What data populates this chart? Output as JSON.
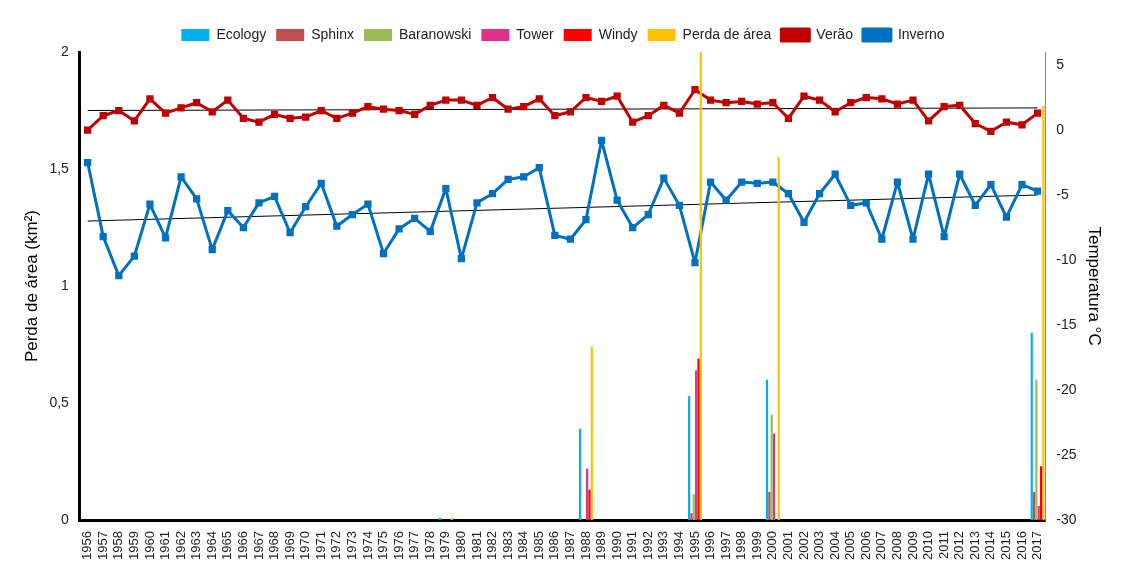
{
  "chart_data": {
    "type": "bar",
    "ylabel": "Perda de área (km²)",
    "y2label": "Temperatura °C",
    "categories": [
      "1956",
      "1957",
      "1958",
      "1959",
      "1960",
      "1961",
      "1962",
      "1963",
      "1964",
      "1965",
      "1966",
      "1967",
      "1968",
      "1969",
      "1970",
      "1971",
      "1972",
      "1973",
      "1974",
      "1975",
      "1976",
      "1977",
      "1978",
      "1979",
      "1980",
      "1981",
      "1982",
      "1983",
      "1984",
      "1985",
      "1986",
      "1987",
      "1988",
      "1989",
      "1990",
      "1991",
      "1992",
      "1993",
      "1994",
      "1995",
      "1996",
      "1997",
      "1998",
      "1999",
      "2000",
      "2001",
      "2002",
      "2003",
      "2004",
      "2005",
      "2006",
      "2007",
      "2008",
      "2009",
      "2010",
      "2011",
      "2012",
      "2013",
      "2014",
      "2015",
      "2016",
      "2017"
    ],
    "series": [
      {
        "name": "Ecology",
        "color": "#00b0f0",
        "values": [
          null,
          null,
          null,
          null,
          null,
          null,
          null,
          null,
          null,
          null,
          null,
          null,
          null,
          null,
          null,
          null,
          null,
          null,
          null,
          null,
          null,
          null,
          null,
          0.01,
          null,
          null,
          null,
          null,
          null,
          null,
          null,
          null,
          0.39,
          null,
          null,
          null,
          null,
          null,
          null,
          0.53,
          null,
          null,
          null,
          null,
          0.6,
          null,
          null,
          null,
          null,
          null,
          null,
          null,
          null,
          null,
          null,
          null,
          null,
          null,
          null,
          null,
          null,
          0.8
        ]
      },
      {
        "name": "Sphinx",
        "color": "#c0504d",
        "values": [
          null,
          null,
          null,
          null,
          null,
          null,
          null,
          null,
          null,
          null,
          null,
          null,
          null,
          null,
          null,
          null,
          null,
          null,
          null,
          null,
          null,
          null,
          null,
          null,
          null,
          null,
          null,
          null,
          null,
          null,
          null,
          null,
          null,
          null,
          null,
          null,
          null,
          null,
          null,
          0.03,
          null,
          null,
          null,
          null,
          0.12,
          null,
          null,
          null,
          null,
          null,
          null,
          null,
          null,
          null,
          null,
          null,
          null,
          null,
          null,
          null,
          null,
          0.12
        ]
      },
      {
        "name": "Baranowski",
        "color": "#9bbb59",
        "values": [
          null,
          null,
          null,
          null,
          null,
          null,
          null,
          null,
          null,
          null,
          null,
          null,
          null,
          null,
          null,
          null,
          null,
          null,
          null,
          null,
          null,
          null,
          null,
          null,
          null,
          null,
          null,
          null,
          null,
          null,
          null,
          null,
          null,
          null,
          null,
          null,
          null,
          null,
          null,
          0.11,
          null,
          null,
          null,
          null,
          0.45,
          null,
          null,
          null,
          null,
          null,
          null,
          null,
          null,
          null,
          null,
          null,
          null,
          null,
          null,
          null,
          null,
          0.6
        ]
      },
      {
        "name": "Tower",
        "color": "#e0308a",
        "values": [
          null,
          null,
          null,
          null,
          null,
          null,
          null,
          null,
          null,
          null,
          null,
          null,
          null,
          null,
          null,
          null,
          null,
          null,
          null,
          null,
          null,
          null,
          null,
          null,
          null,
          null,
          null,
          null,
          null,
          null,
          null,
          null,
          0.22,
          null,
          null,
          null,
          null,
          null,
          null,
          0.64,
          null,
          null,
          null,
          null,
          0.37,
          null,
          null,
          null,
          null,
          null,
          null,
          null,
          null,
          null,
          null,
          null,
          null,
          null,
          null,
          null,
          null,
          0.06
        ]
      },
      {
        "name": "Windy",
        "color": "#ff0000",
        "values": [
          null,
          null,
          null,
          null,
          null,
          null,
          null,
          null,
          null,
          null,
          null,
          null,
          null,
          null,
          null,
          null,
          null,
          null,
          null,
          null,
          null,
          null,
          null,
          null,
          null,
          null,
          null,
          null,
          null,
          null,
          null,
          null,
          0.13,
          null,
          null,
          null,
          null,
          null,
          null,
          0.69,
          null,
          null,
          null,
          null,
          null,
          null,
          null,
          null,
          null,
          null,
          null,
          null,
          null,
          null,
          null,
          null,
          null,
          null,
          null,
          null,
          null,
          0.23
        ]
      },
      {
        "name": "Perda de área",
        "color": "#ffc000",
        "values": [
          null,
          null,
          null,
          null,
          null,
          null,
          null,
          null,
          null,
          null,
          null,
          null,
          null,
          null,
          null,
          null,
          null,
          null,
          null,
          null,
          null,
          null,
          null,
          0.01,
          null,
          null,
          null,
          null,
          null,
          null,
          null,
          null,
          0.74,
          null,
          null,
          null,
          null,
          null,
          null,
          2,
          null,
          null,
          null,
          null,
          1.55,
          null,
          null,
          null,
          null,
          null,
          null,
          null,
          null,
          null,
          null,
          null,
          null,
          null,
          null,
          null,
          null,
          1.77
        ]
      },
      {
        "name": "Verão",
        "type": "line",
        "axis": "y2",
        "color": "#c00000",
        "values": [
          0.0,
          1.1,
          1.5,
          0.7,
          2.4,
          1.3,
          1.7,
          2.1,
          1.4,
          2.3,
          0.9,
          0.6,
          1.2,
          0.9,
          1.0,
          1.5,
          0.9,
          1.3,
          1.8,
          1.6,
          1.5,
          1.2,
          1.9,
          2.3,
          2.3,
          1.9,
          2.5,
          1.6,
          1.8,
          2.4,
          1.1,
          1.4,
          2.5,
          2.2,
          2.6,
          0.6,
          1.1,
          1.9,
          1.3,
          3.1,
          2.3,
          2.1,
          2.2,
          2.0,
          2.1,
          0.9,
          2.6,
          2.3,
          1.4,
          2.1,
          2.5,
          2.4,
          2.0,
          2.3,
          0.7,
          1.8,
          1.9,
          0.5,
          -0.1,
          0.6,
          0.4,
          1.3
        ]
      },
      {
        "name": "Inverno",
        "type": "line",
        "axis": "y2",
        "color": "#0070c0",
        "values": [
          -2.5,
          -8.2,
          -11.2,
          -9.7,
          -5.7,
          -8.3,
          -3.6,
          -5.3,
          -9.2,
          -6.2,
          -7.5,
          -5.6,
          -5.1,
          -7.9,
          -5.9,
          -4.1,
          -7.4,
          -6.5,
          -5.7,
          -9.5,
          -7.6,
          -6.8,
          -7.8,
          -4.5,
          -9.9,
          -5.6,
          -4.9,
          -3.8,
          -3.6,
          -2.9,
          -8.1,
          -8.4,
          -6.9,
          -0.8,
          -5.4,
          -7.5,
          -6.5,
          -3.7,
          -5.8,
          -10.2,
          -4.0,
          -5.4,
          -4.0,
          -4.1,
          -4.0,
          -4.9,
          -7.1,
          -4.9,
          -3.4,
          -5.8,
          -5.6,
          -8.4,
          -4.0,
          -8.4,
          -3.4,
          -8.2,
          -3.4,
          -5.8,
          -4.2,
          -6.7,
          -4.2,
          -4.7
        ]
      },
      {
        "type": "line",
        "axis": "y2",
        "color": "#000000",
        "marker": "none",
        "values": [
          1.5,
          null,
          null,
          null,
          null,
          null,
          null,
          null,
          null,
          null,
          null,
          null,
          null,
          null,
          null,
          null,
          null,
          null,
          null,
          null,
          null,
          null,
          null,
          null,
          null,
          null,
          null,
          null,
          null,
          null,
          null,
          null,
          null,
          null,
          null,
          null,
          null,
          null,
          null,
          null,
          null,
          null,
          null,
          null,
          null,
          null,
          null,
          null,
          null,
          null,
          null,
          null,
          null,
          null,
          null,
          null,
          null,
          null,
          null,
          null,
          null,
          1.7
        ]
      },
      {
        "type": "line",
        "axis": "y2",
        "color": "#000000",
        "marker": "none",
        "values": [
          -7.0,
          null,
          null,
          null,
          null,
          null,
          null,
          null,
          null,
          null,
          null,
          null,
          null,
          null,
          null,
          null,
          null,
          null,
          null,
          null,
          null,
          null,
          null,
          null,
          null,
          null,
          null,
          null,
          null,
          null,
          null,
          null,
          null,
          null,
          null,
          null,
          null,
          null,
          null,
          null,
          null,
          null,
          null,
          null,
          null,
          null,
          null,
          null,
          null,
          null,
          null,
          null,
          null,
          null,
          null,
          null,
          null,
          null,
          null,
          null,
          null,
          -5.0
        ]
      }
    ],
    "ylim": [
      0,
      2
    ],
    "yticks": [
      0,
      {
        "value": 0.5,
        "label": "0,5"
      },
      1,
      {
        "value": 1.5,
        "label": "1,5"
      },
      2
    ],
    "y2lim": [
      -30,
      6
    ],
    "y2ticks": [
      -30,
      -25,
      -20,
      -15,
      -10,
      -5,
      0,
      5
    ],
    "legend": "top",
    "marker": "square",
    "grid": false
  }
}
